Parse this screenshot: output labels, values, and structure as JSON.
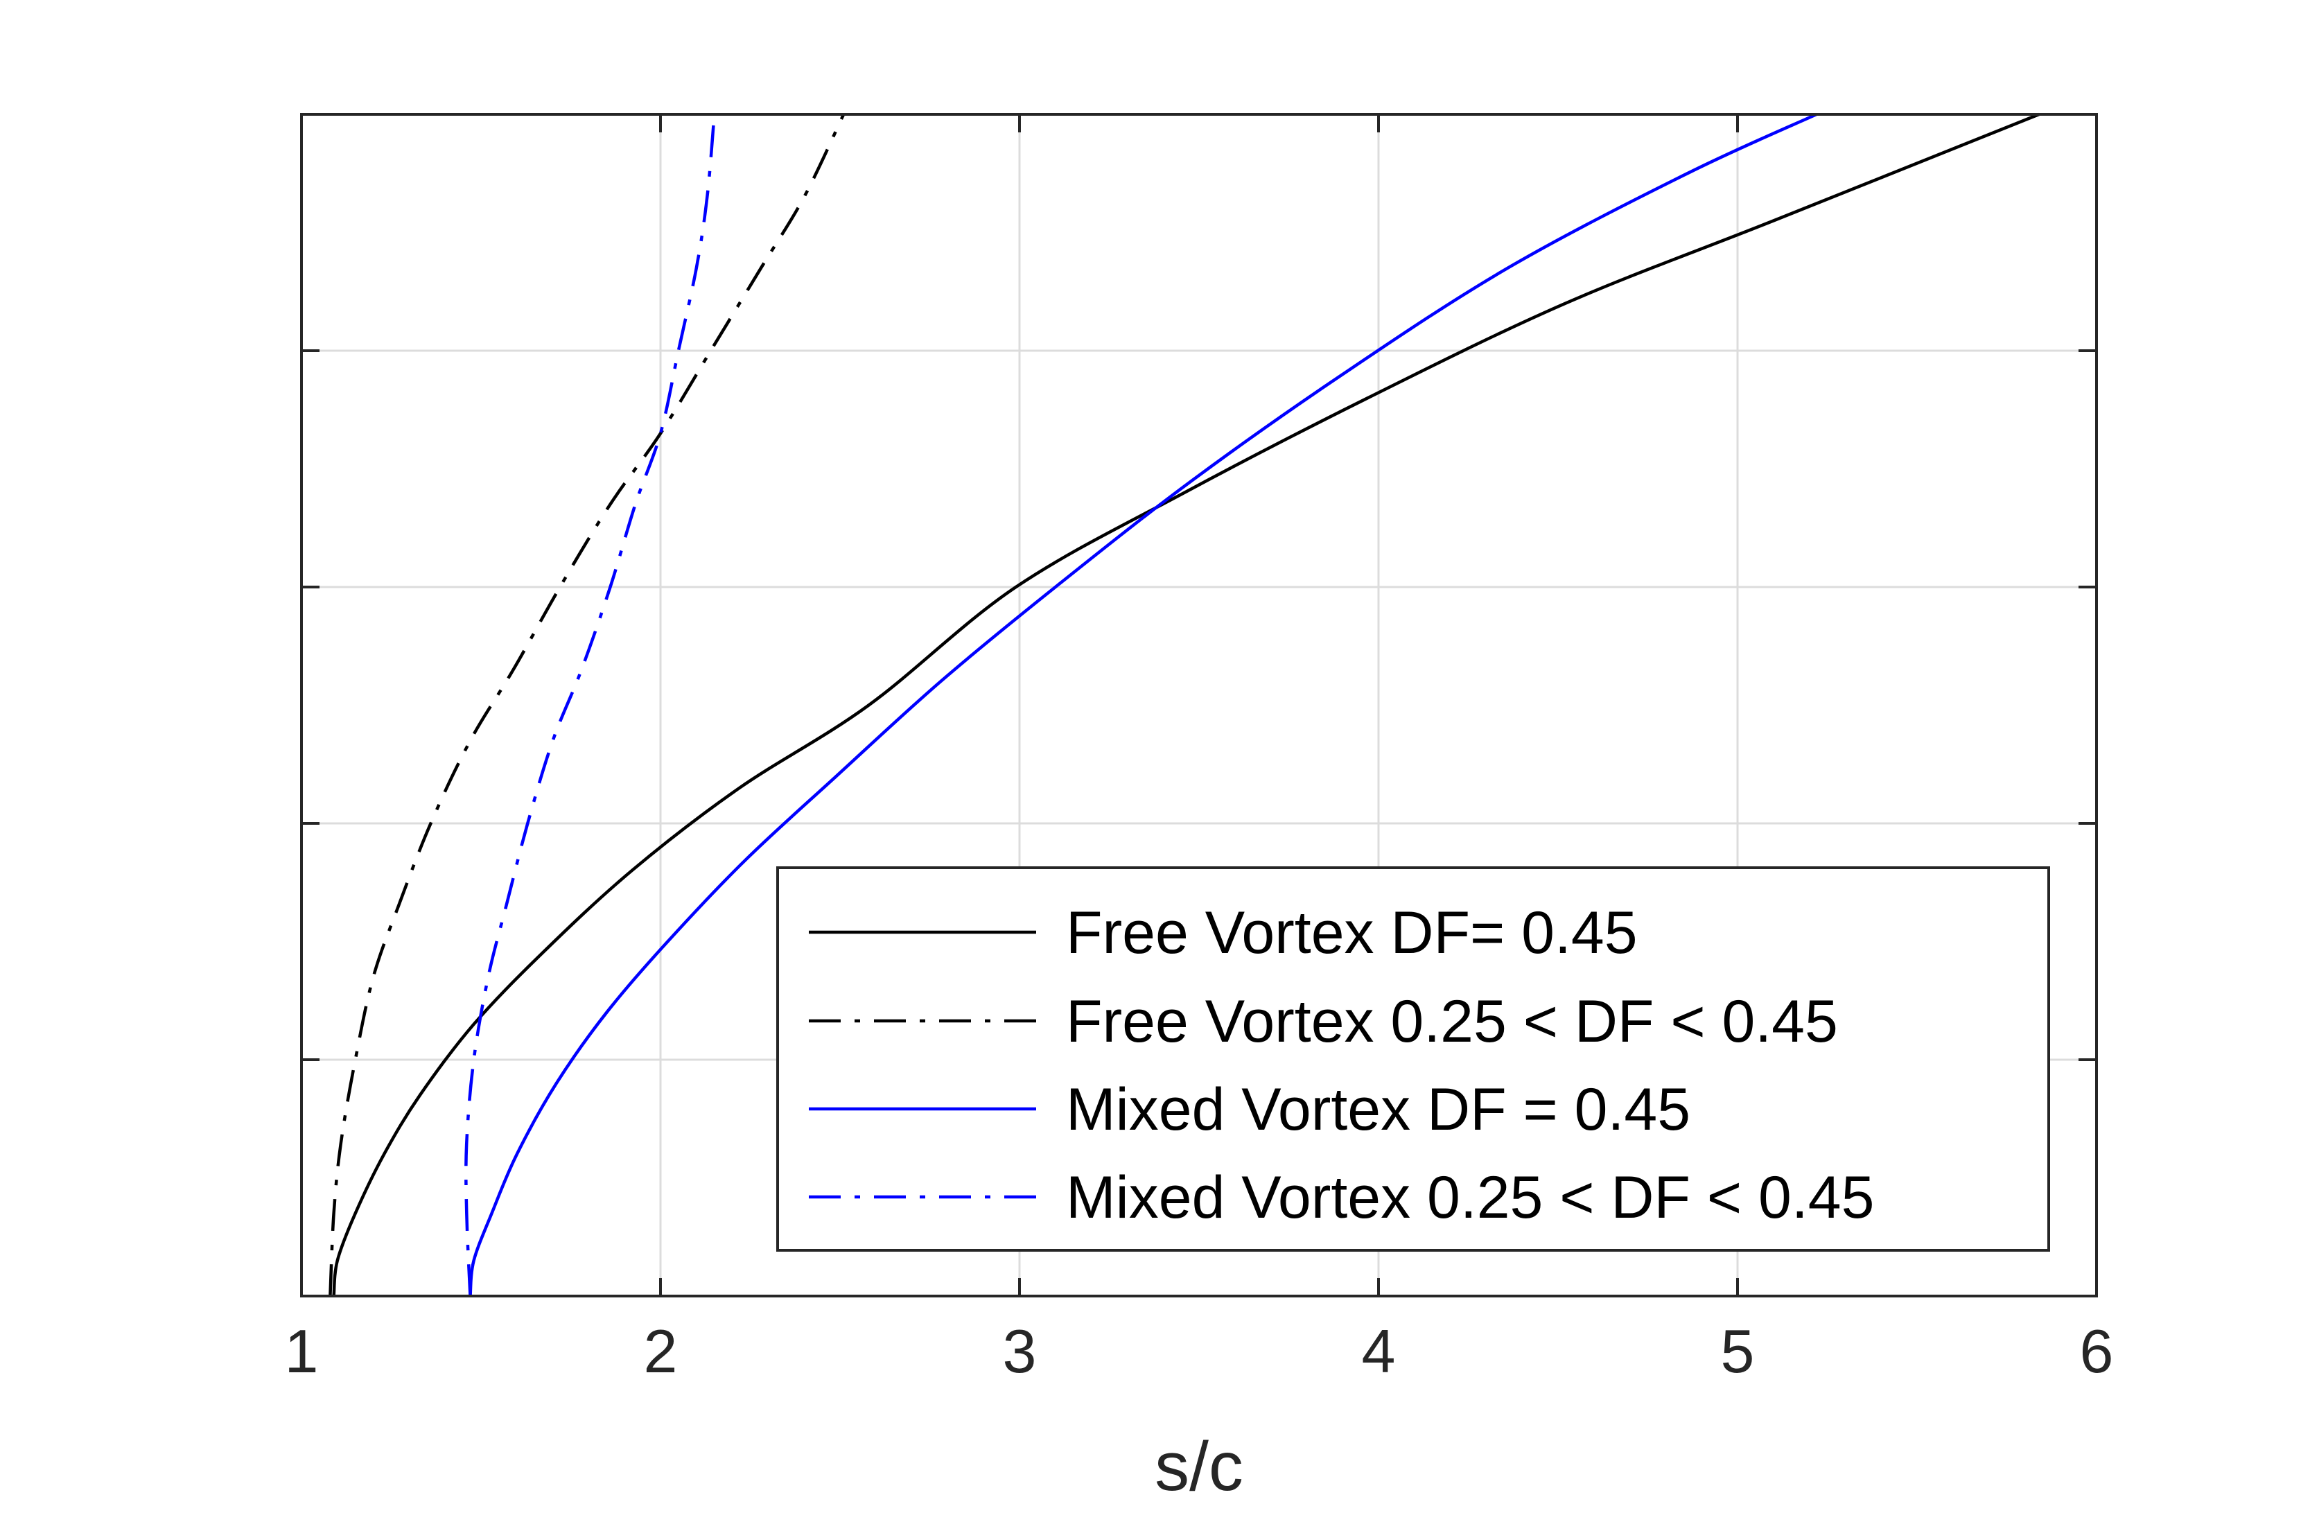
{
  "chart_data": {
    "type": "line",
    "title": "",
    "xlabel": "s/c",
    "ylabel": "",
    "xlim": [
      1,
      6
    ],
    "ylim": [
      0,
      1
    ],
    "xticks": [
      1,
      2,
      3,
      4,
      5,
      6
    ],
    "xtick_labels": [
      "1",
      "2",
      "3",
      "4",
      "5",
      "6"
    ],
    "yticks": [
      0,
      0.2,
      0.4,
      0.6,
      0.8,
      1.0
    ],
    "ytick_labels_visible": false,
    "grid": true,
    "legend_position": "bottom-right",
    "series": [
      {
        "name": "Free Vortex DF= 0.45",
        "color": "#000000",
        "dash": "solid",
        "x": [
          1.09,
          1.1,
          1.15,
          1.23,
          1.33,
          1.48,
          1.67,
          1.92,
          2.22,
          2.58,
          2.99,
          3.46,
          3.97,
          4.52,
          5.1,
          5.84
        ],
        "y": [
          0.0,
          0.03,
          0.07,
          0.12,
          0.17,
          0.23,
          0.29,
          0.36,
          0.43,
          0.5,
          0.6,
          0.68,
          0.76,
          0.84,
          0.91,
          1.0
        ]
      },
      {
        "name": "Free Vortex 0.25 < DF < 0.45",
        "color": "#000000",
        "dash": "dashdot",
        "x": [
          1.08,
          1.09,
          1.11,
          1.15,
          1.2,
          1.27,
          1.36,
          1.47,
          1.59,
          1.72,
          1.86,
          2.0,
          2.14,
          2.28,
          2.4,
          2.51
        ],
        "y": [
          0.0,
          0.07,
          0.13,
          0.2,
          0.27,
          0.33,
          0.4,
          0.47,
          0.53,
          0.6,
          0.67,
          0.73,
          0.8,
          0.87,
          0.93,
          1.0
        ]
      },
      {
        "name": "Mixed Vortex DF = 0.45",
        "color": "#0000ff",
        "dash": "solid",
        "x": [
          1.47,
          1.48,
          1.53,
          1.6,
          1.71,
          1.85,
          2.02,
          2.24,
          2.49,
          2.78,
          3.1,
          3.48,
          3.9,
          4.36,
          4.86,
          5.22
        ],
        "y": [
          0.0,
          0.03,
          0.07,
          0.12,
          0.18,
          0.24,
          0.3,
          0.37,
          0.44,
          0.52,
          0.6,
          0.69,
          0.78,
          0.87,
          0.95,
          1.0
        ]
      },
      {
        "name": "Mixed Vortex 0.25 < DF < 0.45",
        "color": "#0000ff",
        "dash": "dashdot",
        "x": [
          1.47,
          1.46,
          1.46,
          1.48,
          1.52,
          1.57,
          1.63,
          1.7,
          1.78,
          1.86,
          1.93,
          2.0,
          2.05,
          2.1,
          2.13,
          2.15
        ],
        "y": [
          0.0,
          0.07,
          0.13,
          0.2,
          0.27,
          0.33,
          0.4,
          0.47,
          0.53,
          0.6,
          0.67,
          0.73,
          0.8,
          0.87,
          0.93,
          1.0
        ]
      }
    ]
  }
}
